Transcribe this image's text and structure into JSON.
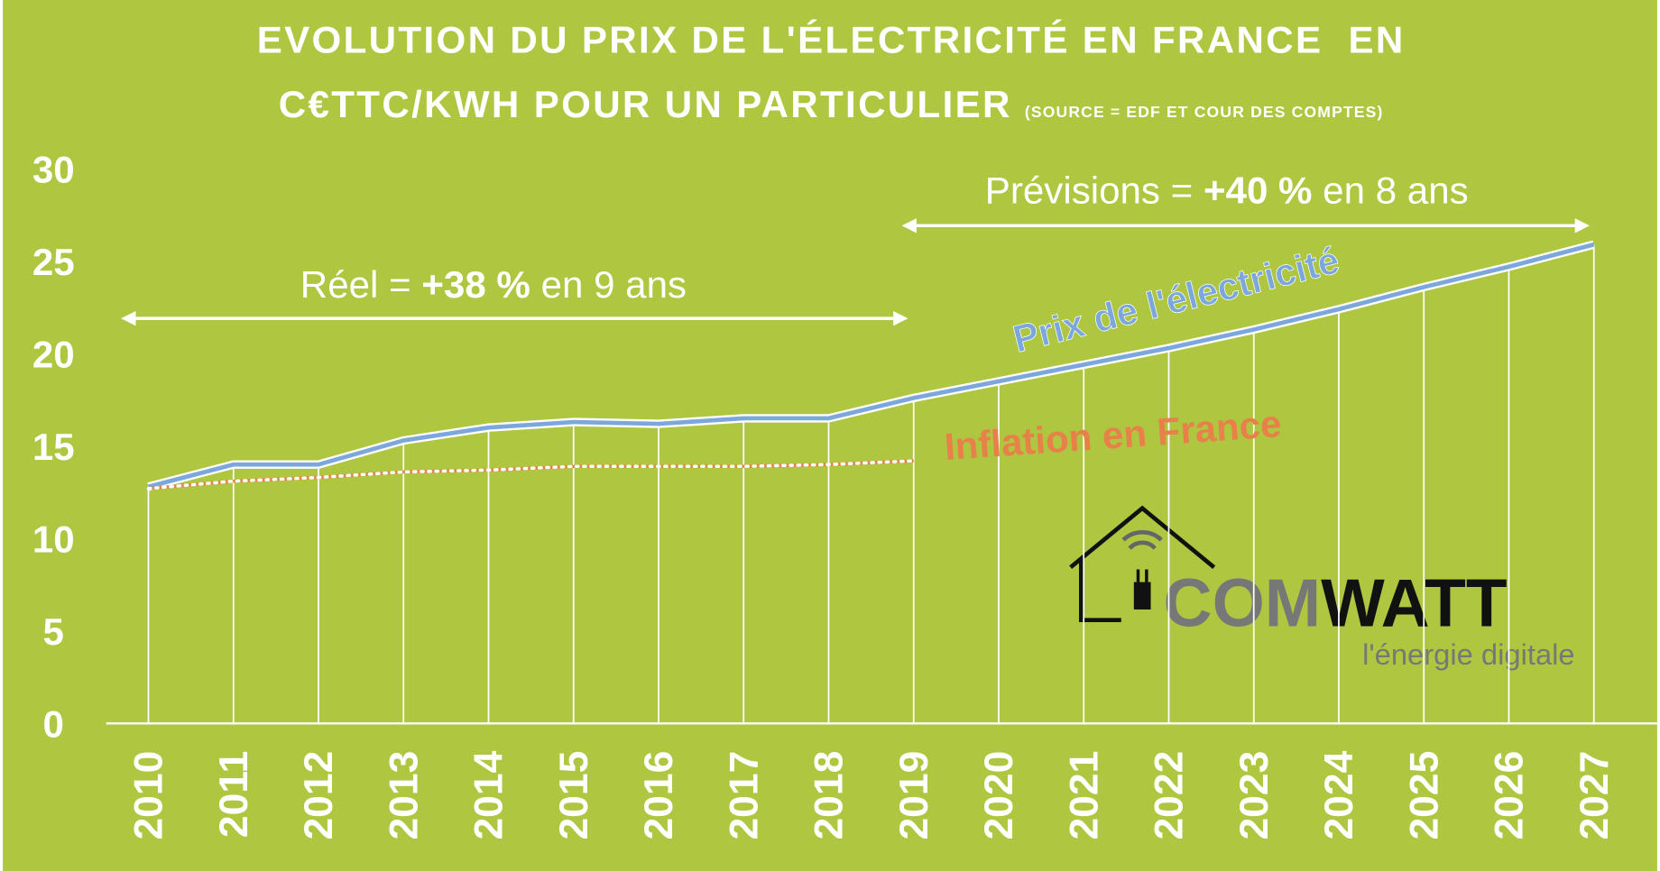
{
  "chart_data": {
    "type": "line",
    "title_line1": "EVOLUTION DU PRIX DE L'ÉLECTRICITÉ EN FRANCE  EN",
    "title_line2": "C€TTC/KWH POUR UN PARTICULIER",
    "source": "(SOURCE = EDF ET COUR DES COMPTES)",
    "categories": [
      "2010",
      "2011",
      "2012",
      "2013",
      "2014",
      "2015",
      "2016",
      "2017",
      "2018",
      "2019",
      "2020",
      "2021",
      "2022",
      "2023",
      "2024",
      "2025",
      "2026",
      "2027"
    ],
    "series": [
      {
        "name": "Prix de l'électricité",
        "color": "#7ba7dc",
        "values": [
          12.8,
          14.0,
          14.0,
          15.3,
          16.0,
          16.3,
          16.2,
          16.5,
          16.5,
          17.6,
          18.5,
          19.4,
          20.3,
          21.3,
          22.4,
          23.6,
          24.7,
          25.9
        ]
      },
      {
        "name": "Inflation en France",
        "color": "#e8804a",
        "values": [
          12.7,
          13.1,
          13.3,
          13.6,
          13.7,
          13.9,
          13.9,
          13.9,
          14.0,
          14.2,
          null,
          null,
          null,
          null,
          null,
          null,
          null,
          null
        ]
      }
    ],
    "ylim": [
      0,
      30
    ],
    "yticks": [
      0,
      5,
      10,
      15,
      20,
      25,
      30
    ],
    "annotations": [
      {
        "parts": [
          "Réel = ",
          "+38 %",
          " en 9 ans"
        ]
      },
      {
        "parts": [
          "Prévisions = ",
          "+40 %",
          " en 8 ans"
        ]
      }
    ],
    "logo": {
      "brand_part1": "COM",
      "brand_part2": "WATT",
      "tagline": "l'énergie digitale"
    }
  }
}
